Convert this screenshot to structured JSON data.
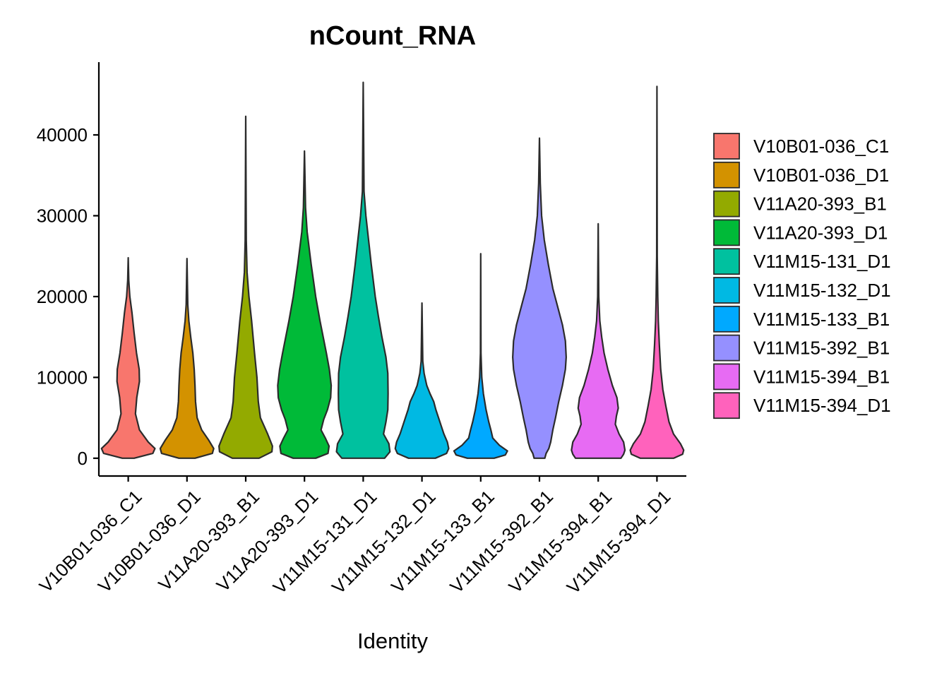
{
  "chart_data": {
    "type": "violin",
    "title": "nCount_RNA",
    "xlabel": "Identity",
    "ylabel": "",
    "ylim": [
      -2200,
      49000
    ],
    "yticks": [
      0,
      10000,
      20000,
      30000,
      40000
    ],
    "ytick_labels": [
      "0",
      "10000",
      "20000",
      "30000",
      "40000"
    ],
    "grid": false,
    "legend_position": "right",
    "categories": [
      "V10B01-036_C1",
      "V10B01-036_D1",
      "V11A20-393_B1",
      "V11A20-393_D1",
      "V11M15-131_D1",
      "V11M15-132_D1",
      "V11M15-133_B1",
      "V11M15-392_B1",
      "V11M15-394_B1",
      "V11M15-394_D1"
    ],
    "series": [
      {
        "name": "V10B01-036_C1",
        "color": "#F8766D",
        "min": 0,
        "max": 24800,
        "profile": [
          [
            0,
            0.22
          ],
          [
            600,
            0.92
          ],
          [
            1200,
            1.0
          ],
          [
            2000,
            0.75
          ],
          [
            3500,
            0.42
          ],
          [
            5500,
            0.27
          ],
          [
            7500,
            0.32
          ],
          [
            9500,
            0.42
          ],
          [
            11000,
            0.41
          ],
          [
            13000,
            0.31
          ],
          [
            15500,
            0.22
          ],
          [
            18000,
            0.14
          ],
          [
            20000,
            0.06
          ],
          [
            22000,
            0.02
          ],
          [
            24800,
            0.0
          ]
        ]
      },
      {
        "name": "V10B01-036_D1",
        "color": "#D39200",
        "min": 0,
        "max": 24700,
        "profile": [
          [
            0,
            0.3
          ],
          [
            600,
            0.95
          ],
          [
            1200,
            1.0
          ],
          [
            2200,
            0.82
          ],
          [
            3500,
            0.55
          ],
          [
            5000,
            0.38
          ],
          [
            7000,
            0.32
          ],
          [
            9000,
            0.3
          ],
          [
            11000,
            0.27
          ],
          [
            13000,
            0.22
          ],
          [
            15000,
            0.14
          ],
          [
            17000,
            0.07
          ],
          [
            19000,
            0.03
          ],
          [
            24700,
            0.0
          ]
        ]
      },
      {
        "name": "V11A20-393_B1",
        "color": "#93AA00",
        "min": 0,
        "max": 42300,
        "profile": [
          [
            0,
            0.5
          ],
          [
            800,
            0.98
          ],
          [
            1500,
            1.0
          ],
          [
            3000,
            0.82
          ],
          [
            5000,
            0.55
          ],
          [
            7000,
            0.47
          ],
          [
            10000,
            0.42
          ],
          [
            13000,
            0.33
          ],
          [
            17000,
            0.22
          ],
          [
            20000,
            0.12
          ],
          [
            23000,
            0.05
          ],
          [
            27000,
            0.02
          ],
          [
            42300,
            0.0
          ]
        ]
      },
      {
        "name": "V11A20-393_D1",
        "color": "#00BA38",
        "min": 0,
        "max": 38000,
        "profile": [
          [
            0,
            0.42
          ],
          [
            600,
            0.88
          ],
          [
            1500,
            0.92
          ],
          [
            2500,
            0.78
          ],
          [
            3500,
            0.62
          ],
          [
            4800,
            0.72
          ],
          [
            6000,
            0.86
          ],
          [
            7500,
            0.98
          ],
          [
            9000,
            1.0
          ],
          [
            11000,
            0.93
          ],
          [
            13000,
            0.82
          ],
          [
            15000,
            0.7
          ],
          [
            17000,
            0.58
          ],
          [
            20000,
            0.42
          ],
          [
            24000,
            0.25
          ],
          [
            28000,
            0.1
          ],
          [
            31000,
            0.04
          ],
          [
            38000,
            0.0
          ]
        ]
      },
      {
        "name": "V11M15-131_D1",
        "color": "#00C19F",
        "min": 0,
        "max": 46500,
        "profile": [
          [
            0,
            0.8
          ],
          [
            800,
            1.0
          ],
          [
            1800,
            0.96
          ],
          [
            3000,
            0.76
          ],
          [
            4500,
            0.85
          ],
          [
            6000,
            0.92
          ],
          [
            8000,
            0.93
          ],
          [
            10500,
            0.92
          ],
          [
            12500,
            0.85
          ],
          [
            15000,
            0.7
          ],
          [
            17500,
            0.57
          ],
          [
            20000,
            0.45
          ],
          [
            24000,
            0.3
          ],
          [
            27000,
            0.2
          ],
          [
            30000,
            0.1
          ],
          [
            33000,
            0.03
          ],
          [
            46500,
            0.0
          ]
        ]
      },
      {
        "name": "V11M15-132_D1",
        "color": "#00B9E3",
        "min": 0,
        "max": 19200,
        "profile": [
          [
            0,
            0.5
          ],
          [
            600,
            0.92
          ],
          [
            1200,
            1.0
          ],
          [
            2000,
            0.95
          ],
          [
            3000,
            0.82
          ],
          [
            4000,
            0.72
          ],
          [
            5000,
            0.62
          ],
          [
            6000,
            0.52
          ],
          [
            7000,
            0.44
          ],
          [
            8000,
            0.3
          ],
          [
            9000,
            0.18
          ],
          [
            10500,
            0.08
          ],
          [
            12000,
            0.03
          ],
          [
            19200,
            0.0
          ]
        ]
      },
      {
        "name": "V11M15-133_B1",
        "color": "#00A9FF",
        "min": 0,
        "max": 25300,
        "profile": [
          [
            0,
            0.5
          ],
          [
            400,
            0.92
          ],
          [
            900,
            1.0
          ],
          [
            1600,
            0.7
          ],
          [
            2500,
            0.45
          ],
          [
            3500,
            0.38
          ],
          [
            4500,
            0.3
          ],
          [
            6000,
            0.2
          ],
          [
            8000,
            0.1
          ],
          [
            10000,
            0.04
          ],
          [
            13000,
            0.01
          ],
          [
            25300,
            0.0
          ]
        ]
      },
      {
        "name": "V11M15-392_B1",
        "color": "#9590FF",
        "min": 0,
        "max": 39600,
        "profile": [
          [
            0,
            0.2
          ],
          [
            600,
            0.25
          ],
          [
            1200,
            0.35
          ],
          [
            2000,
            0.42
          ],
          [
            3500,
            0.5
          ],
          [
            5000,
            0.6
          ],
          [
            7000,
            0.72
          ],
          [
            9000,
            0.86
          ],
          [
            11000,
            0.97
          ],
          [
            12500,
            1.0
          ],
          [
            14500,
            0.97
          ],
          [
            16500,
            0.86
          ],
          [
            18500,
            0.7
          ],
          [
            21000,
            0.5
          ],
          [
            24000,
            0.33
          ],
          [
            27000,
            0.18
          ],
          [
            30000,
            0.08
          ],
          [
            34000,
            0.03
          ],
          [
            39600,
            0.0
          ]
        ]
      },
      {
        "name": "V11M15-394_B1",
        "color": "#E76BF3",
        "min": 0,
        "max": 29000,
        "profile": [
          [
            0,
            0.85
          ],
          [
            500,
            0.95
          ],
          [
            1000,
            1.0
          ],
          [
            2000,
            0.95
          ],
          [
            3000,
            0.78
          ],
          [
            4200,
            0.64
          ],
          [
            5200,
            0.68
          ],
          [
            6200,
            0.75
          ],
          [
            7500,
            0.7
          ],
          [
            9000,
            0.53
          ],
          [
            11000,
            0.36
          ],
          [
            13000,
            0.22
          ],
          [
            15000,
            0.13
          ],
          [
            17000,
            0.06
          ],
          [
            20000,
            0.02
          ],
          [
            29000,
            0.0
          ]
        ]
      },
      {
        "name": "V11M15-394_D1",
        "color": "#FF62BC",
        "min": 0,
        "max": 46000,
        "profile": [
          [
            0,
            0.62
          ],
          [
            500,
            0.96
          ],
          [
            1000,
            1.0
          ],
          [
            1800,
            0.88
          ],
          [
            3000,
            0.62
          ],
          [
            4500,
            0.45
          ],
          [
            6500,
            0.33
          ],
          [
            8500,
            0.22
          ],
          [
            11000,
            0.14
          ],
          [
            14000,
            0.09
          ],
          [
            17000,
            0.05
          ],
          [
            20000,
            0.03
          ],
          [
            25000,
            0.01
          ],
          [
            46000,
            0.0
          ]
        ]
      }
    ]
  }
}
